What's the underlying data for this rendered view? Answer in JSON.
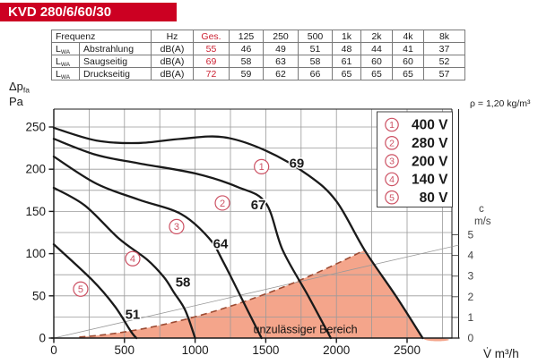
{
  "title": "KVD 280/6/60/30",
  "density_note": "ρ = 1,20 kg/m³",
  "table": {
    "header": [
      "Frequenz",
      "Hz",
      "Ges.",
      "125",
      "250",
      "500",
      "1k",
      "2k",
      "4k",
      "8k"
    ],
    "rows": [
      {
        "sym_main": "L",
        "sym_sub": "WA",
        "name": "Abstrahlung",
        "unit": "dB(A)",
        "ges": "55",
        "values": [
          "46",
          "49",
          "51",
          "48",
          "44",
          "41",
          "37"
        ]
      },
      {
        "sym_main": "L",
        "sym_sub": "WA",
        "name": "Saugseitig",
        "unit": "dB(A)",
        "ges": "69",
        "values": [
          "58",
          "63",
          "58",
          "61",
          "60",
          "60",
          "52"
        ]
      },
      {
        "sym_main": "L",
        "sym_sub": "WA",
        "name": "Druckseitig",
        "unit": "dB(A)",
        "ges": "72",
        "values": [
          "59",
          "62",
          "66",
          "65",
          "65",
          "65",
          "57"
        ]
      }
    ]
  },
  "chart_data": {
    "type": "line",
    "xlabel": "V̇ m³/h",
    "ylabel": {
      "main": "Δp",
      "sub": "fa",
      "unit": "Pa"
    },
    "xlim": [
      0,
      2810
    ],
    "ylim": [
      0,
      271
    ],
    "x_ticks": [
      0,
      500,
      1000,
      1500,
      2000,
      2500
    ],
    "y_ticks": [
      0,
      50,
      100,
      150,
      200,
      250
    ],
    "x_minor_step": 250,
    "y_minor_step": 25,
    "grid": true,
    "legend_position": "top-right",
    "right_axis": {
      "label": "c",
      "unit": "m/s",
      "ticks": [
        0,
        1,
        2,
        3,
        4,
        5
      ]
    },
    "velocity_guide": {
      "ends_at_c": 4.5
    },
    "series": [
      {
        "num": "1",
        "name": "400 V",
        "noise_db": "69",
        "marker_at": [
          1470,
          203
        ],
        "noise_at": [
          1719,
          207
        ],
        "points": [
          [
            0,
            249
          ],
          [
            300,
            234
          ],
          [
            600,
            231
          ],
          [
            900,
            236
          ],
          [
            1200,
            238
          ],
          [
            1500,
            222
          ],
          [
            1800,
            193
          ],
          [
            2000,
            162
          ],
          [
            2200,
            104
          ],
          [
            2420,
            50
          ],
          [
            2610,
            0
          ]
        ]
      },
      {
        "num": "2",
        "name": "280 V",
        "noise_db": "67",
        "marker_at": [
          1193,
          160
        ],
        "noise_at": [
          1447,
          158
        ],
        "points": [
          [
            0,
            236
          ],
          [
            300,
            217
          ],
          [
            600,
            207
          ],
          [
            1000,
            195
          ],
          [
            1300,
            179
          ],
          [
            1500,
            160
          ],
          [
            1620,
            104
          ],
          [
            1800,
            50
          ],
          [
            1960,
            0
          ]
        ]
      },
      {
        "num": "3",
        "name": "200 V",
        "noise_db": "64",
        "marker_at": [
          869,
          132
        ],
        "noise_at": [
          1180,
          112
        ],
        "points": [
          [
            0,
            215
          ],
          [
            300,
            183
          ],
          [
            600,
            164
          ],
          [
            900,
            147
          ],
          [
            1100,
            118
          ],
          [
            1200,
            90
          ],
          [
            1350,
            40
          ],
          [
            1470,
            0
          ]
        ]
      },
      {
        "num": "4",
        "name": "140 V",
        "noise_db": "58",
        "marker_at": [
          558,
          94
        ],
        "noise_at": [
          914,
          66
        ],
        "points": [
          [
            0,
            178
          ],
          [
            220,
            157
          ],
          [
            460,
            118
          ],
          [
            660,
            93
          ],
          [
            780,
            72
          ],
          [
            850,
            54
          ],
          [
            930,
            33
          ],
          [
            1000,
            0
          ]
        ]
      },
      {
        "num": "5",
        "name": "80 V",
        "noise_db": "51",
        "marker_at": [
          190,
          58
        ],
        "noise_at": [
          558,
          28
        ],
        "points": [
          [
            0,
            111
          ],
          [
            270,
            69
          ],
          [
            430,
            38
          ],
          [
            545,
            8
          ],
          [
            585,
            0
          ]
        ]
      }
    ],
    "forbidden_region": {
      "label": "unzulässiger Bereich",
      "label_at": [
        1780,
        10
      ],
      "start_v": 180,
      "peak": [
        2196,
        104
      ],
      "exponent": 1.8
    }
  },
  "colors": {
    "banner_bg": "#cc0022",
    "banner_text": "#ffffff",
    "accent_red": "#cc2233",
    "circle_red": "#cc5163",
    "region_fill": "#f4a58b",
    "region_edge": "#9c4a32",
    "grid": "#9a9a9a",
    "axis": "#1a1a1a",
    "curve": "#1a1a1a",
    "right_axis_text": "#444444"
  }
}
